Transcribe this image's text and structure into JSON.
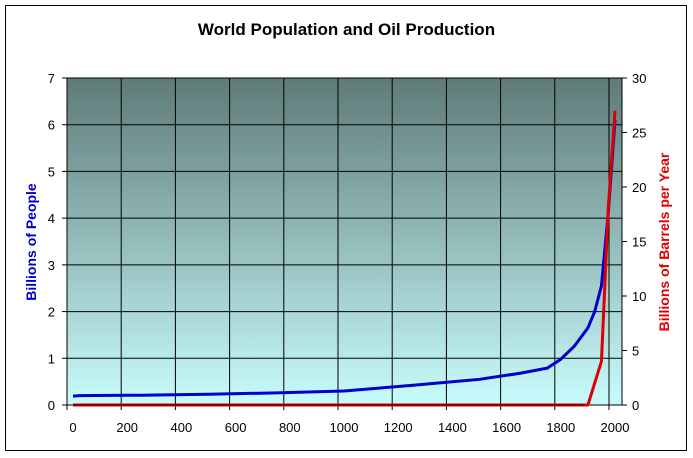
{
  "chart_data": {
    "type": "line",
    "title": "World Population and Oil Production",
    "xlabel": "",
    "ylabel": "Billions of People",
    "y2label": "Billions of Barrels per Year",
    "xlim": [
      0,
      2000
    ],
    "ylim": [
      0,
      7
    ],
    "y2lim": [
      0,
      30
    ],
    "x_ticks": [
      0,
      200,
      400,
      600,
      800,
      1000,
      1200,
      1400,
      1600,
      1800,
      2000
    ],
    "y_ticks": [
      0,
      1,
      2,
      3,
      4,
      5,
      6,
      7
    ],
    "y2_ticks": [
      0,
      5,
      10,
      15,
      20,
      25,
      30
    ],
    "grid": true,
    "legend": "none",
    "series": [
      {
        "name": "World Population",
        "axis": "left",
        "color": "#0000cc",
        "x": [
          0,
          25,
          250,
          500,
          750,
          1000,
          1250,
          1500,
          1650,
          1750,
          1800,
          1850,
          1900,
          1925,
          1950,
          1975,
          2000
        ],
        "values": [
          0.19,
          0.2,
          0.21,
          0.23,
          0.26,
          0.3,
          0.42,
          0.55,
          0.68,
          0.79,
          0.98,
          1.26,
          1.65,
          2.0,
          2.55,
          4.1,
          6.1
        ]
      },
      {
        "name": "Oil Production",
        "axis": "right",
        "color": "#dd0000",
        "x": [
          0,
          1900,
          1950,
          1975,
          2000
        ],
        "values": [
          0,
          0,
          4,
          18,
          27
        ]
      }
    ]
  },
  "colors": {
    "plot_top": "#5f7b78",
    "plot_bottom": "#c8fcfc",
    "population": "#0000cc",
    "oil": "#dd0000"
  }
}
